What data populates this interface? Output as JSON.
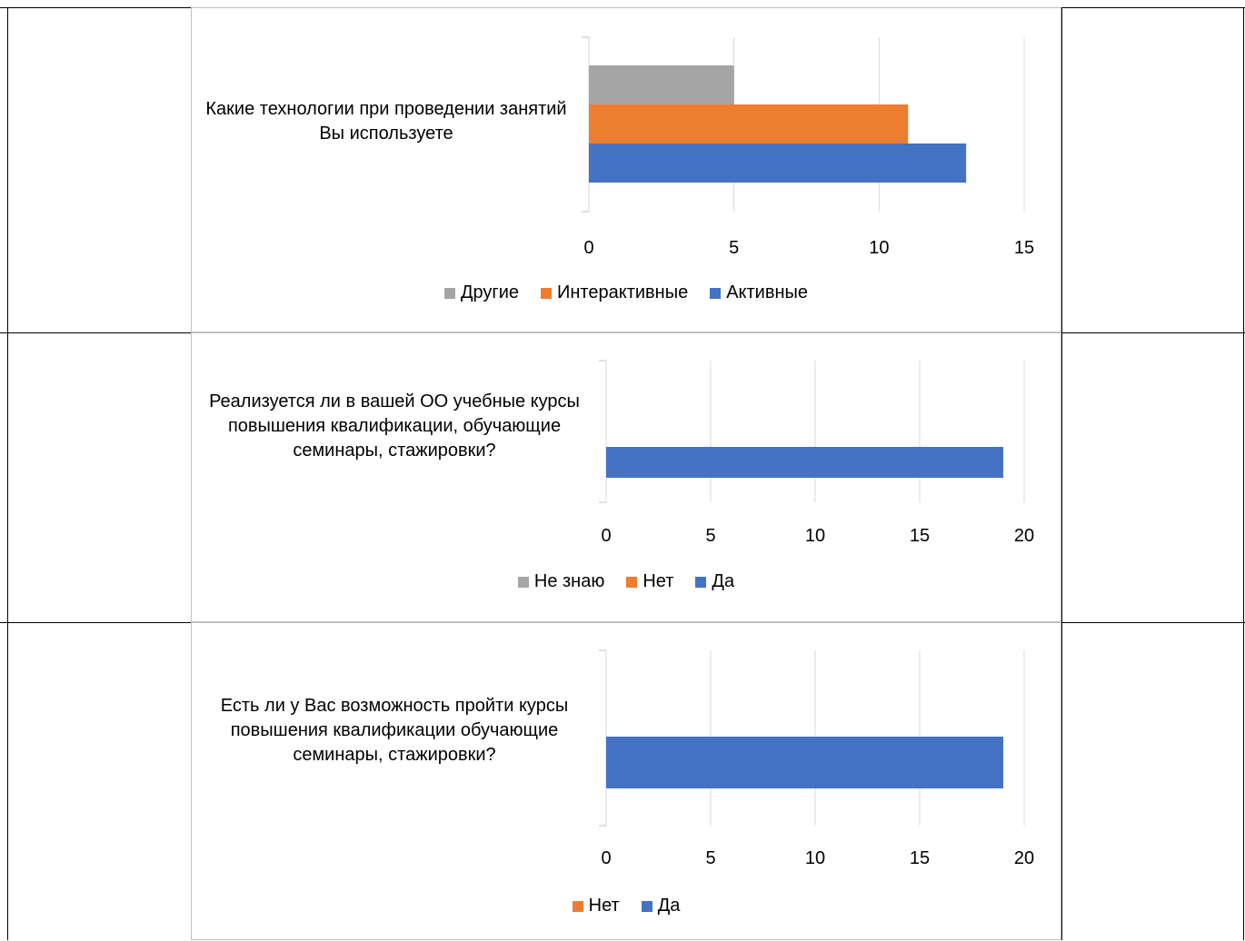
{
  "charts": [
    {
      "chart_data": {
        "type": "bar",
        "orientation": "horizontal",
        "categories": [
          "Какие технологии при проведении занятий Вы используете"
        ],
        "series": [
          {
            "name": "Другие",
            "values": [
              5
            ],
            "color": "#a5a5a5"
          },
          {
            "name": "Интерактивные",
            "values": [
              11
            ],
            "color": "#ed7d31"
          },
          {
            "name": "Активные",
            "values": [
              13
            ],
            "color": "#4472c4"
          }
        ],
        "xlim": [
          0,
          15
        ],
        "xticks": [
          "0",
          "5",
          "10",
          "15"
        ],
        "grid": true,
        "legend_position": "bottom"
      }
    },
    {
      "chart_data": {
        "type": "bar",
        "orientation": "horizontal",
        "categories": [
          "Реализуется ли в вашей ОО учебные курсы повышения квалификации, обучающие семинары, стажировки?"
        ],
        "series": [
          {
            "name": "Не знаю",
            "values": [
              0
            ],
            "color": "#a5a5a5"
          },
          {
            "name": "Нет",
            "values": [
              0
            ],
            "color": "#ed7d31"
          },
          {
            "name": "Да",
            "values": [
              19
            ],
            "color": "#4472c4"
          }
        ],
        "xlim": [
          0,
          20
        ],
        "xticks": [
          "0",
          "5",
          "10",
          "15",
          "20"
        ],
        "grid": true,
        "legend_position": "bottom"
      }
    },
    {
      "chart_data": {
        "type": "bar",
        "orientation": "horizontal",
        "categories": [
          "Есть ли у Вас возможность пройти курсы повышения квалификации обучающие семинары, стажировки?"
        ],
        "series": [
          {
            "name": "Нет",
            "values": [
              0
            ],
            "color": "#ed7d31"
          },
          {
            "name": "Да",
            "values": [
              19
            ],
            "color": "#4472c4"
          }
        ],
        "xlim": [
          0,
          20
        ],
        "xticks": [
          "0",
          "5",
          "10",
          "15",
          "20"
        ],
        "grid": true,
        "legend_position": "bottom"
      }
    }
  ]
}
